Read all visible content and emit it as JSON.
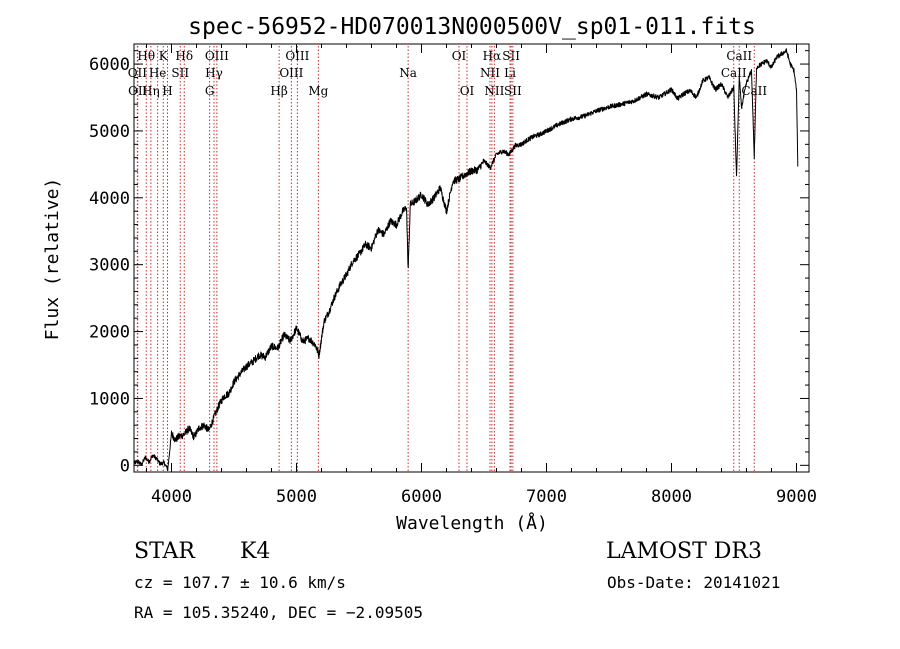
{
  "chart_data": {
    "type": "line",
    "title": "spec-56952-HD070013N000500V_sp01-011.fits",
    "xlabel": "Wavelength (Å)",
    "ylabel": "Flux (relative)",
    "xlim": [
      3700,
      9100
    ],
    "ylim": [
      -100,
      6300
    ],
    "xticks": [
      4000,
      5000,
      6000,
      7000,
      8000,
      9000
    ],
    "yticks": [
      0,
      1000,
      2000,
      3000,
      4000,
      5000,
      6000
    ],
    "series": [
      {
        "name": "flux",
        "x": [
          3700,
          3730,
          3760,
          3790,
          3820,
          3850,
          3880,
          3910,
          3940,
          3970,
          4000,
          4030,
          4060,
          4100,
          4140,
          4180,
          4220,
          4260,
          4300,
          4340,
          4380,
          4420,
          4460,
          4500,
          4550,
          4600,
          4650,
          4700,
          4750,
          4800,
          4850,
          4900,
          4950,
          5000,
          5050,
          5100,
          5150,
          5180,
          5220,
          5260,
          5300,
          5350,
          5400,
          5450,
          5500,
          5550,
          5600,
          5650,
          5700,
          5750,
          5800,
          5850,
          5880,
          5893,
          5910,
          5950,
          6000,
          6050,
          6100,
          6150,
          6200,
          6250,
          6300,
          6350,
          6400,
          6450,
          6500,
          6550,
          6600,
          6650,
          6700,
          6750,
          6800,
          6850,
          6900,
          6950,
          7000,
          7100,
          7200,
          7300,
          7400,
          7500,
          7600,
          7700,
          7800,
          7900,
          8000,
          8050,
          8100,
          8150,
          8200,
          8250,
          8300,
          8350,
          8400,
          8450,
          8498,
          8520,
          8542,
          8560,
          8600,
          8640,
          8662,
          8680,
          8720,
          8760,
          8800,
          8840,
          8880,
          8920,
          8950,
          8980,
          9000,
          9010
        ],
        "values": [
          30,
          60,
          10,
          120,
          50,
          150,
          100,
          20,
          40,
          -60,
          480,
          380,
          430,
          460,
          550,
          420,
          560,
          600,
          520,
          720,
          900,
          1030,
          1080,
          1250,
          1370,
          1480,
          1550,
          1650,
          1620,
          1780,
          1750,
          1950,
          1860,
          2050,
          1850,
          1900,
          1800,
          1650,
          2150,
          2300,
          2500,
          2700,
          2850,
          3050,
          3150,
          3300,
          3250,
          3520,
          3450,
          3650,
          3600,
          3800,
          3850,
          2900,
          3900,
          3950,
          4050,
          3900,
          4000,
          4150,
          3800,
          4250,
          4280,
          4350,
          4400,
          4420,
          4550,
          4450,
          4650,
          4700,
          4650,
          4780,
          4800,
          4870,
          4920,
          4950,
          5000,
          5100,
          5180,
          5220,
          5300,
          5360,
          5400,
          5450,
          5550,
          5500,
          5620,
          5480,
          5560,
          5600,
          5500,
          5750,
          5800,
          5620,
          5700,
          5500,
          5650,
          4300,
          5800,
          5350,
          5720,
          5900,
          4600,
          5950,
          6000,
          6050,
          5950,
          6100,
          6150,
          6200,
          6000,
          5900,
          5600,
          4500
        ]
      }
    ],
    "line_markers": [
      {
        "name": "Hθ",
        "x": 3798,
        "row": 1
      },
      {
        "name": "OII",
        "x": 3727,
        "row": 2
      },
      {
        "name": "OII",
        "x": 3730,
        "row": 3
      },
      {
        "name": "Hη",
        "x": 3835,
        "row": 3
      },
      {
        "name": "He",
        "x": 3889,
        "row": 2
      },
      {
        "name": "K",
        "x": 3934,
        "row": 1
      },
      {
        "name": "H",
        "x": 3968,
        "row": 3
      },
      {
        "name": "SII",
        "x": 4070,
        "row": 2
      },
      {
        "name": "Hδ",
        "x": 4102,
        "row": 1
      },
      {
        "name": "OIII",
        "x": 4363,
        "row": 1
      },
      {
        "name": "Hγ",
        "x": 4340,
        "row": 2
      },
      {
        "name": "G",
        "x": 4305,
        "row": 3
      },
      {
        "name": "Hβ",
        "x": 4861,
        "row": 3
      },
      {
        "name": "OIII",
        "x": 5007,
        "row": 1
      },
      {
        "name": "OIII",
        "x": 4959,
        "row": 2
      },
      {
        "name": "Mg",
        "x": 5175,
        "row": 3
      },
      {
        "name": "Na",
        "x": 5893,
        "row": 2
      },
      {
        "name": "OI",
        "x": 6300,
        "row": 1
      },
      {
        "name": "OI",
        "x": 6364,
        "row": 3
      },
      {
        "name": "Hα",
        "x": 6563,
        "row": 1
      },
      {
        "name": "NII",
        "x": 6548,
        "row": 2
      },
      {
        "name": "NII",
        "x": 6583,
        "row": 3
      },
      {
        "name": "SII",
        "x": 6717,
        "row": 1
      },
      {
        "name": "Li",
        "x": 6708,
        "row": 2
      },
      {
        "name": "SII",
        "x": 6731,
        "row": 3
      },
      {
        "name": "CaII",
        "x": 8542,
        "row": 1
      },
      {
        "name": "CaII",
        "x": 8498,
        "row": 2
      },
      {
        "name": "CaII",
        "x": 8662,
        "row": 3
      }
    ]
  },
  "info": {
    "object_class": "STAR",
    "subclass": "K4",
    "survey": "LAMOST DR3",
    "cz": "cz = 107.7 ± 10.6 km/s",
    "obs_date": "Obs-Date: 20141021",
    "coords": "RA = 105.35240, DEC =  −2.09505"
  }
}
